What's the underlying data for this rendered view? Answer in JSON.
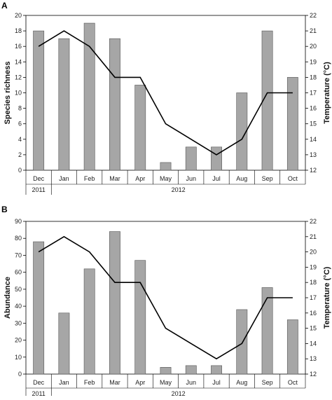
{
  "chart_data": [
    {
      "panel_label": "A",
      "type": "bar",
      "categories": [
        "Dec",
        "Jan",
        "Feb",
        "Mar",
        "Apr",
        "May",
        "Jun",
        "Jul",
        "Aug",
        "Sep",
        "Oct"
      ],
      "year_labels": [
        "2011",
        "2012"
      ],
      "ylabel": "Species richness",
      "ylim": [
        0,
        20
      ],
      "yticks": [
        0,
        2,
        4,
        6,
        8,
        10,
        12,
        14,
        16,
        18,
        20
      ],
      "y2label": "Temperature (°C)",
      "y2lim": [
        12,
        22
      ],
      "y2ticks": [
        12,
        13,
        14,
        15,
        16,
        17,
        18,
        19,
        20,
        21,
        22
      ],
      "bar_values": [
        18,
        17,
        19,
        17,
        11,
        1,
        3,
        3,
        10,
        18,
        12
      ],
      "line_values": [
        20,
        21,
        20,
        18,
        18,
        15,
        14,
        13,
        14,
        17,
        17
      ],
      "colors": {
        "bar": "#a6a6a6",
        "bar_edge": "#555555",
        "line": "#000000"
      }
    },
    {
      "panel_label": "B",
      "type": "bar",
      "categories": [
        "Dec",
        "Jan",
        "Feb",
        "Mar",
        "Apr",
        "May",
        "Jun",
        "Jul",
        "Aug",
        "Sep",
        "Oct"
      ],
      "year_labels": [
        "2011",
        "2012"
      ],
      "ylabel": "Abundance",
      "ylim": [
        0,
        90
      ],
      "yticks": [
        0,
        10,
        20,
        30,
        40,
        50,
        60,
        70,
        80,
        90
      ],
      "y2label": "Temperature (°C)",
      "y2lim": [
        12,
        22
      ],
      "y2ticks": [
        12,
        13,
        14,
        15,
        16,
        17,
        18,
        19,
        20,
        21,
        22
      ],
      "bar_values": [
        78,
        36,
        62,
        84,
        67,
        4,
        5,
        5,
        38,
        51,
        32
      ],
      "line_values": [
        20,
        21,
        20,
        18,
        18,
        15,
        14,
        13,
        14,
        17,
        17
      ],
      "colors": {
        "bar": "#a6a6a6",
        "bar_edge": "#555555",
        "line": "#000000"
      }
    }
  ]
}
